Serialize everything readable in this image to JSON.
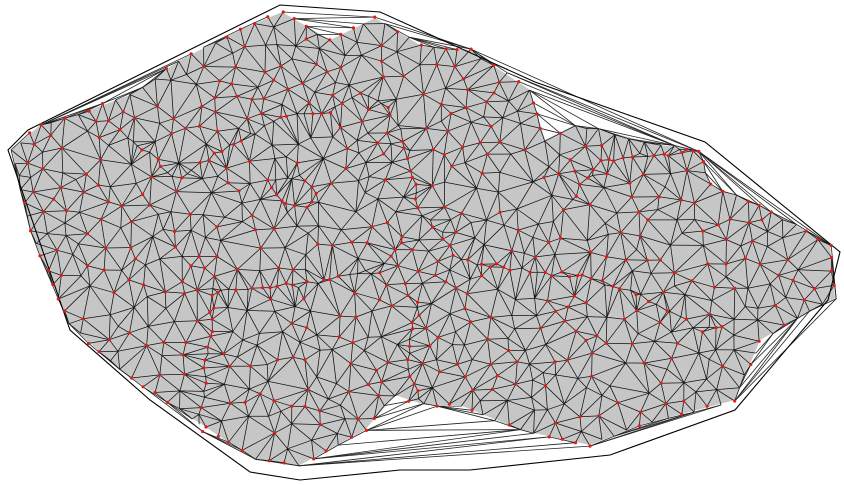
{
  "figure": {
    "type": "triangulated-mesh",
    "colors": {
      "background": "#ffffff",
      "region_fill": "#c6c6c6",
      "edge": "#111111",
      "node": "#e21a1a"
    },
    "elements": [
      "region-fill",
      "triangle-edges",
      "convex-hull-edges",
      "boundary-edges",
      "mesh-nodes"
    ]
  }
}
